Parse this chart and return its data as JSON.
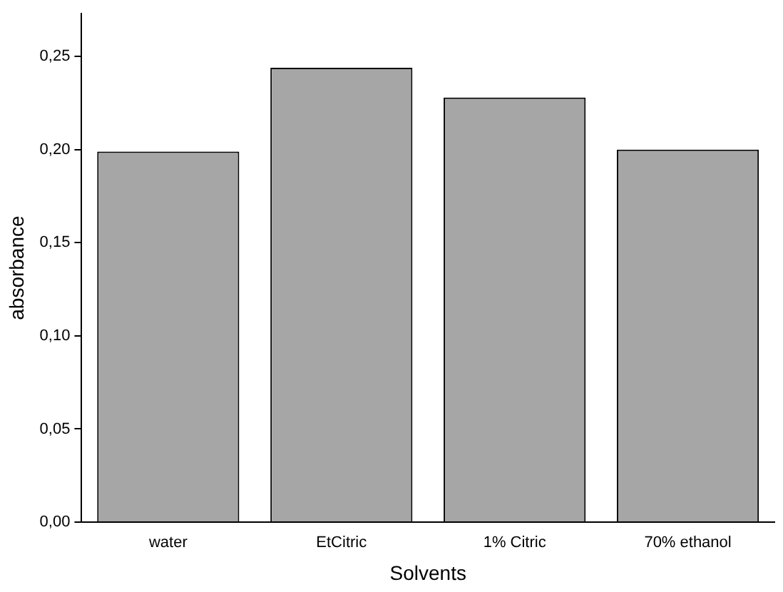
{
  "chart_data": {
    "type": "bar",
    "xlabel": "Solvents",
    "ylabel": "absorbance",
    "categories": [
      "water",
      "EtCitric",
      "1% Citric",
      "70% ethanol"
    ],
    "values": [
      0.199,
      0.244,
      0.228,
      0.2
    ],
    "color": "#a6a6a6",
    "ylim": [
      0,
      0.273
    ],
    "yticks": [
      {
        "value": 0,
        "label": "0,00"
      },
      {
        "value": 0.05,
        "label": "0,05"
      },
      {
        "value": 0.1,
        "label": "0,10"
      },
      {
        "value": 0.15,
        "label": "0,15"
      },
      {
        "value": 0.2,
        "label": "0,20"
      },
      {
        "value": 0.25,
        "label": "0,25"
      }
    ],
    "grid": false,
    "legend": false
  }
}
